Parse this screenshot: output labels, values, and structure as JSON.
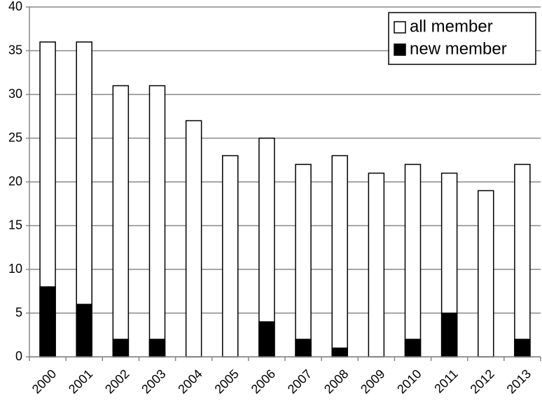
{
  "chart_data": {
    "type": "bar",
    "overlap": true,
    "categories": [
      "2000",
      "2001",
      "2002",
      "2003",
      "2004",
      "2005",
      "2006",
      "2007",
      "2008",
      "2009",
      "2010",
      "2011",
      "2012",
      "2013"
    ],
    "series": [
      {
        "name": "all member",
        "color": "#ffffff",
        "values": [
          36,
          36,
          31,
          31,
          27,
          23,
          25,
          22,
          23,
          21,
          22,
          21,
          19,
          22
        ]
      },
      {
        "name": "new member",
        "color": "#000000",
        "values": [
          8,
          6,
          2,
          2,
          0,
          0,
          4,
          2,
          1,
          0,
          2,
          5,
          0,
          2
        ]
      }
    ],
    "ylim": [
      0,
      40
    ],
    "yticks": [
      0,
      5,
      10,
      15,
      20,
      25,
      30,
      35,
      40
    ],
    "grid": true,
    "legend": "top-right"
  }
}
